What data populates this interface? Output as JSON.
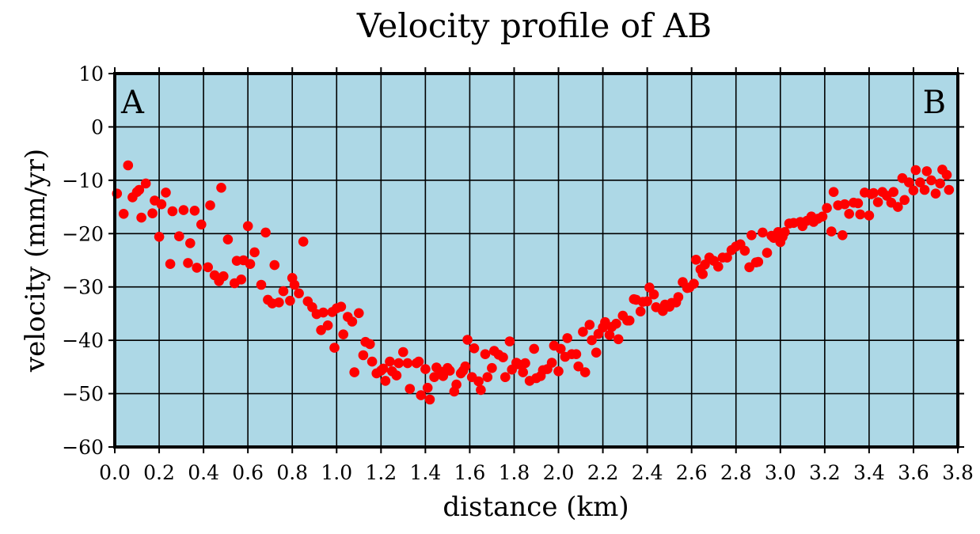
{
  "chart_data": {
    "type": "scatter",
    "title": "Velocity profile of AB",
    "xlabel": "distance (km)",
    "ylabel": "velocity (mm/yr)",
    "xlim": [
      0.0,
      3.8
    ],
    "ylim": [
      -60,
      10
    ],
    "xticks": [
      0.0,
      0.2,
      0.4,
      0.6,
      0.8,
      1.0,
      1.2,
      1.4,
      1.6,
      1.8,
      2.0,
      2.2,
      2.4,
      2.6,
      2.8,
      3.0,
      3.2,
      3.4,
      3.6,
      3.8
    ],
    "xtick_labels": [
      "0.0",
      "0.2",
      "0.4",
      "0.6",
      "0.8",
      "1.0",
      "1.2",
      "1.4",
      "1.6",
      "1.8",
      "2.0",
      "2.2",
      "2.4",
      "2.6",
      "2.8",
      "3.0",
      "3.2",
      "3.4",
      "3.6",
      "3.8"
    ],
    "yticks": [
      10,
      0,
      -10,
      -20,
      -30,
      -40,
      -50,
      -60
    ],
    "ytick_labels": [
      "10",
      "0",
      "−10",
      "−20",
      "−30",
      "−40",
      "−50",
      "−60"
    ],
    "grid": true,
    "annotations": [
      {
        "text": "A",
        "position": "top-left"
      },
      {
        "text": "B",
        "position": "top-right"
      }
    ],
    "colors": {
      "background": "#add8e6",
      "points": "#ff0000",
      "grid": "#000000"
    },
    "points": [
      [
        0.01,
        -12.5
      ],
      [
        0.04,
        -16.3
      ],
      [
        0.06,
        -7.2
      ],
      [
        0.08,
        -13.2
      ],
      [
        0.1,
        -12.2
      ],
      [
        0.11,
        -11.8
      ],
      [
        0.12,
        -17.0
      ],
      [
        0.14,
        -10.6
      ],
      [
        0.17,
        -16.2
      ],
      [
        0.18,
        -13.8
      ],
      [
        0.2,
        -20.6
      ],
      [
        0.21,
        -14.5
      ],
      [
        0.23,
        -12.3
      ],
      [
        0.25,
        -25.7
      ],
      [
        0.26,
        -15.8
      ],
      [
        0.29,
        -20.5
      ],
      [
        0.31,
        -15.6
      ],
      [
        0.33,
        -25.5
      ],
      [
        0.34,
        -21.8
      ],
      [
        0.36,
        -15.7
      ],
      [
        0.37,
        -26.4
      ],
      [
        0.39,
        -18.3
      ],
      [
        0.42,
        -26.3
      ],
      [
        0.43,
        -14.7
      ],
      [
        0.45,
        -27.8
      ],
      [
        0.47,
        -28.9
      ],
      [
        0.48,
        -11.4
      ],
      [
        0.49,
        -28.0
      ],
      [
        0.51,
        -21.1
      ],
      [
        0.54,
        -29.3
      ],
      [
        0.55,
        -25.1
      ],
      [
        0.57,
        -28.6
      ],
      [
        0.58,
        -25.0
      ],
      [
        0.6,
        -18.6
      ],
      [
        0.61,
        -25.7
      ],
      [
        0.63,
        -23.5
      ],
      [
        0.66,
        -29.6
      ],
      [
        0.68,
        -19.8
      ],
      [
        0.69,
        -32.4
      ],
      [
        0.71,
        -33.1
      ],
      [
        0.72,
        -25.9
      ],
      [
        0.74,
        -32.9
      ],
      [
        0.76,
        -30.8
      ],
      [
        0.79,
        -32.6
      ],
      [
        0.8,
        -28.3
      ],
      [
        0.81,
        -29.6
      ],
      [
        0.83,
        -31.2
      ],
      [
        0.85,
        -21.5
      ],
      [
        0.87,
        -32.7
      ],
      [
        0.89,
        -33.8
      ],
      [
        0.91,
        -35.1
      ],
      [
        0.93,
        -38.1
      ],
      [
        0.94,
        -34.8
      ],
      [
        0.96,
        -37.2
      ],
      [
        0.98,
        -34.7
      ],
      [
        0.99,
        -41.4
      ],
      [
        1.0,
        -34.0
      ],
      [
        1.02,
        -33.7
      ],
      [
        1.03,
        -38.9
      ],
      [
        1.05,
        -35.6
      ],
      [
        1.07,
        -36.5
      ],
      [
        1.08,
        -46.0
      ],
      [
        1.1,
        -34.9
      ],
      [
        1.12,
        -42.8
      ],
      [
        1.13,
        -40.3
      ],
      [
        1.15,
        -40.7
      ],
      [
        1.16,
        -44.0
      ],
      [
        1.18,
        -46.2
      ],
      [
        1.2,
        -45.7
      ],
      [
        1.21,
        -45.3
      ],
      [
        1.22,
        -47.6
      ],
      [
        1.24,
        -44.0
      ],
      [
        1.25,
        -45.8
      ],
      [
        1.27,
        -46.6
      ],
      [
        1.28,
        -44.3
      ],
      [
        1.3,
        -42.2
      ],
      [
        1.32,
        -44.3
      ],
      [
        1.33,
        -49.1
      ],
      [
        1.36,
        -44.3
      ],
      [
        1.37,
        -44.0
      ],
      [
        1.38,
        -50.3
      ],
      [
        1.4,
        -45.4
      ],
      [
        1.41,
        -48.9
      ],
      [
        1.42,
        -51.1
      ],
      [
        1.44,
        -46.9
      ],
      [
        1.45,
        -45.1
      ],
      [
        1.47,
        -45.9
      ],
      [
        1.48,
        -46.7
      ],
      [
        1.5,
        -45.2
      ],
      [
        1.51,
        -45.7
      ],
      [
        1.53,
        -49.6
      ],
      [
        1.54,
        -48.3
      ],
      [
        1.56,
        -46.2
      ],
      [
        1.57,
        -45.7
      ],
      [
        1.58,
        -44.9
      ],
      [
        1.59,
        -39.9
      ],
      [
        1.61,
        -46.9
      ],
      [
        1.62,
        -41.5
      ],
      [
        1.64,
        -47.7
      ],
      [
        1.65,
        -49.3
      ],
      [
        1.67,
        -42.6
      ],
      [
        1.68,
        -46.9
      ],
      [
        1.7,
        -45.2
      ],
      [
        1.71,
        -42.0
      ],
      [
        1.73,
        -42.7
      ],
      [
        1.75,
        -43.2
      ],
      [
        1.76,
        -46.9
      ],
      [
        1.78,
        -40.2
      ],
      [
        1.79,
        -45.5
      ],
      [
        1.81,
        -44.2
      ],
      [
        1.82,
        -44.5
      ],
      [
        1.84,
        -46.0
      ],
      [
        1.85,
        -44.3
      ],
      [
        1.87,
        -47.6
      ],
      [
        1.89,
        -41.6
      ],
      [
        1.9,
        -47.1
      ],
      [
        1.92,
        -46.7
      ],
      [
        1.93,
        -45.6
      ],
      [
        1.95,
        -45.4
      ],
      [
        1.97,
        -44.2
      ],
      [
        1.98,
        -41.0
      ],
      [
        2.0,
        -45.8
      ],
      [
        2.01,
        -41.6
      ],
      [
        2.03,
        -43.1
      ],
      [
        2.04,
        -39.6
      ],
      [
        2.06,
        -42.6
      ],
      [
        2.08,
        -42.6
      ],
      [
        2.09,
        -44.9
      ],
      [
        2.11,
        -38.4
      ],
      [
        2.12,
        -46.0
      ],
      [
        2.14,
        -37.1
      ],
      [
        2.15,
        -40.0
      ],
      [
        2.17,
        -42.3
      ],
      [
        2.18,
        -38.8
      ],
      [
        2.2,
        -37.6
      ],
      [
        2.21,
        -36.6
      ],
      [
        2.23,
        -39.0
      ],
      [
        2.24,
        -37.5
      ],
      [
        2.26,
        -36.9
      ],
      [
        2.27,
        -39.8
      ],
      [
        2.29,
        -35.4
      ],
      [
        2.31,
        -36.3
      ],
      [
        2.32,
        -36.3
      ],
      [
        2.34,
        -32.3
      ],
      [
        2.35,
        -32.4
      ],
      [
        2.37,
        -34.6
      ],
      [
        2.38,
        -32.8
      ],
      [
        2.4,
        -32.7
      ],
      [
        2.41,
        -30.1
      ],
      [
        2.43,
        -31.4
      ],
      [
        2.44,
        -33.8
      ],
      [
        2.47,
        -34.5
      ],
      [
        2.48,
        -33.3
      ],
      [
        2.5,
        -33.7
      ],
      [
        2.51,
        -33.0
      ],
      [
        2.53,
        -32.9
      ],
      [
        2.54,
        -31.9
      ],
      [
        2.56,
        -29.1
      ],
      [
        2.58,
        -30.2
      ],
      [
        2.59,
        -30.1
      ],
      [
        2.61,
        -29.4
      ],
      [
        2.62,
        -24.9
      ],
      [
        2.64,
        -26.7
      ],
      [
        2.65,
        -27.6
      ],
      [
        2.66,
        -25.8
      ],
      [
        2.68,
        -24.5
      ],
      [
        2.7,
        -25.1
      ],
      [
        2.72,
        -26.2
      ],
      [
        2.74,
        -24.5
      ],
      [
        2.76,
        -24.5
      ],
      [
        2.78,
        -23.1
      ],
      [
        2.8,
        -22.4
      ],
      [
        2.82,
        -22.0
      ],
      [
        2.84,
        -23.2
      ],
      [
        2.86,
        -26.3
      ],
      [
        2.87,
        -20.3
      ],
      [
        2.89,
        -25.4
      ],
      [
        2.9,
        -25.3
      ],
      [
        2.92,
        -19.8
      ],
      [
        2.94,
        -23.6
      ],
      [
        2.96,
        -20.4
      ],
      [
        2.97,
        -20.8
      ],
      [
        2.99,
        -19.7
      ],
      [
        3.0,
        -21.6
      ],
      [
        3.01,
        -20.6
      ],
      [
        3.02,
        -19.7
      ],
      [
        3.04,
        -18.1
      ],
      [
        3.06,
        -18.0
      ],
      [
        3.09,
        -17.8
      ],
      [
        3.1,
        -18.6
      ],
      [
        3.12,
        -17.6
      ],
      [
        3.14,
        -16.8
      ],
      [
        3.15,
        -17.8
      ],
      [
        3.17,
        -17.2
      ],
      [
        3.19,
        -16.8
      ],
      [
        3.21,
        -15.2
      ],
      [
        3.23,
        -19.6
      ],
      [
        3.24,
        -12.2
      ],
      [
        3.26,
        -14.7
      ],
      [
        3.28,
        -20.3
      ],
      [
        3.29,
        -14.5
      ],
      [
        3.31,
        -16.3
      ],
      [
        3.33,
        -14.2
      ],
      [
        3.35,
        -14.3
      ],
      [
        3.36,
        -16.4
      ],
      [
        3.38,
        -12.3
      ],
      [
        3.4,
        -16.6
      ],
      [
        3.41,
        -12.6
      ],
      [
        3.42,
        -12.4
      ],
      [
        3.44,
        -14.1
      ],
      [
        3.46,
        -12.2
      ],
      [
        3.48,
        -12.9
      ],
      [
        3.5,
        -14.2
      ],
      [
        3.51,
        -12.2
      ],
      [
        3.53,
        -15.0
      ],
      [
        3.55,
        -9.6
      ],
      [
        3.56,
        -13.7
      ],
      [
        3.58,
        -10.4
      ],
      [
        3.6,
        -11.9
      ],
      [
        3.61,
        -8.1
      ],
      [
        3.63,
        -10.4
      ],
      [
        3.65,
        -11.8
      ],
      [
        3.66,
        -8.3
      ],
      [
        3.68,
        -10.0
      ],
      [
        3.7,
        -12.5
      ],
      [
        3.72,
        -10.6
      ],
      [
        3.73,
        -8.0
      ],
      [
        3.75,
        -9.0
      ],
      [
        3.76,
        -11.8
      ]
    ]
  }
}
